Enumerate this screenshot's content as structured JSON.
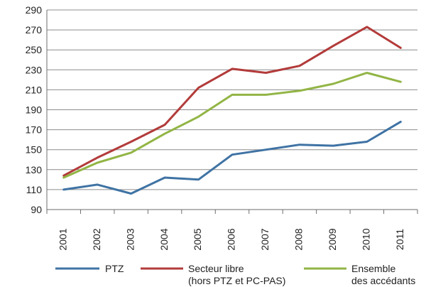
{
  "chart_data": {
    "type": "line",
    "title": "",
    "xlabel": "",
    "ylabel": "",
    "x": [
      "2001",
      "2002",
      "2003",
      "2004",
      "2005",
      "2006",
      "2007",
      "2008",
      "2009",
      "2010",
      "2011"
    ],
    "ylim": [
      90,
      290
    ],
    "yticks": [
      90,
      110,
      130,
      150,
      170,
      190,
      210,
      230,
      250,
      270,
      290
    ],
    "grid": "horizontal",
    "legend_position": "bottom",
    "series": [
      {
        "name": "PTZ",
        "color": "#3f73a4",
        "values": [
          110,
          115,
          106,
          122,
          120,
          145,
          150,
          155,
          154,
          158,
          178
        ]
      },
      {
        "name": "Secteur libre",
        "name_line2": "(hors PTZ et PC-PAS)",
        "color": "#b23b3a",
        "values": [
          124,
          142,
          158,
          175,
          212,
          231,
          227,
          234,
          254,
          273,
          252
        ]
      },
      {
        "name": "Ensemble",
        "name_line2": "des accédants",
        "color": "#92b545",
        "values": [
          122,
          137,
          147,
          166,
          183,
          205,
          205,
          209,
          216,
          227,
          218
        ]
      }
    ]
  }
}
